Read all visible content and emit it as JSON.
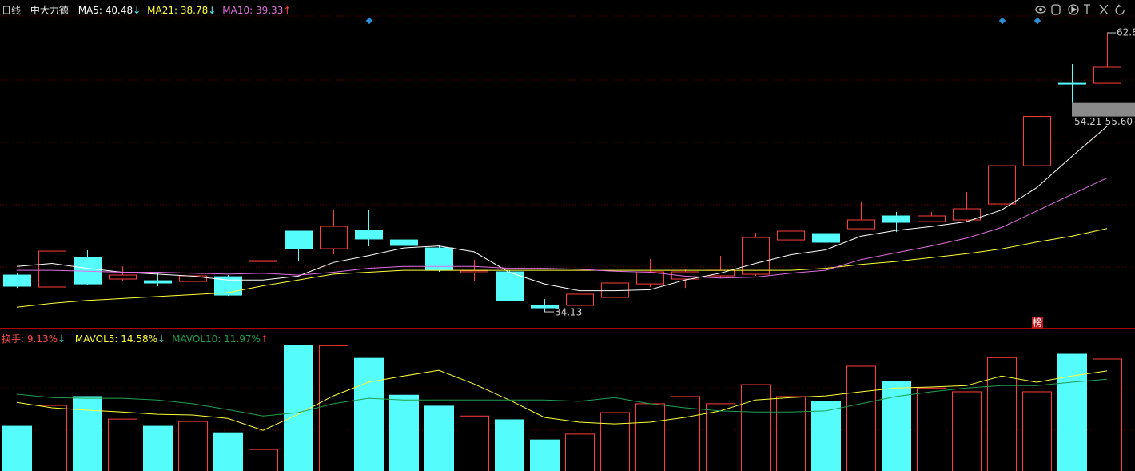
{
  "header": {
    "period": "日线",
    "stock": "中大力德"
  },
  "chart_data": [
    {
      "type": "candlestick",
      "open": [
        37.91,
        36.68,
        39.72,
        37.5,
        37.33,
        37.25,
        37.74,
        39.3,
        42.43,
        40.62,
        42.51,
        41.52,
        40.7,
        38.15,
        38.24,
        34.79,
        34.79,
        35.61,
        37.0,
        37.5,
        37.83,
        37.99,
        41.52,
        42.18,
        42.67,
        43.99,
        43.41,
        43.58,
        45.22,
        49.16,
        57.62,
        57.62
      ],
      "high": [
        38.07,
        40.37,
        40.46,
        38.81,
        38.24,
        38.65,
        37.91,
        39.39,
        42.43,
        44.64,
        44.64,
        43.33,
        40.95,
        39.47,
        38.4,
        35.44,
        35.94,
        37.09,
        39.55,
        38.57,
        39.88,
        42.26,
        43.41,
        43.08,
        45.47,
        44.4,
        44.4,
        46.45,
        49.16,
        54.21,
        59.6,
        62.8
      ],
      "low": [
        36.59,
        36.68,
        36.92,
        37.33,
        36.76,
        37.09,
        35.77,
        39.3,
        39.39,
        40.04,
        40.87,
        40.7,
        38.24,
        37.25,
        35.2,
        34.13,
        34.79,
        35.2,
        36.68,
        36.59,
        37.58,
        37.83,
        41.52,
        41.2,
        42.67,
        42.34,
        43.41,
        43.41,
        44.48,
        48.59,
        55.6,
        57.62
      ],
      "close": [
        36.76,
        40.37,
        37.0,
        37.91,
        37.09,
        37.83,
        35.85,
        39.39,
        40.62,
        42.92,
        41.61,
        40.95,
        38.4,
        38.32,
        35.28,
        34.54,
        35.94,
        37.09,
        38.24,
        38.24,
        38.4,
        41.77,
        42.43,
        41.28,
        43.58,
        43.33,
        43.99,
        44.73,
        49.16,
        54.21,
        57.6,
        59.27
      ],
      "up_color": "#ff3c3c",
      "down_color": "#54fcfc",
      "ylim": [
        32.49,
        66.17
      ],
      "series": [
        {
          "name": "MA5: 40.48",
          "arrow": "↓",
          "arrow_color": "#54fcfc",
          "color": "#ffffff",
          "values": [
            38.8,
            39.1,
            38.6,
            38.2,
            38.0,
            37.8,
            37.4,
            37.4,
            37.8,
            39.2,
            39.9,
            40.7,
            40.9,
            40.3,
            38.2,
            37.0,
            36.3,
            36.3,
            36.4,
            37.4,
            38.1,
            39.1,
            40.0,
            40.5,
            41.9,
            42.5,
            42.9,
            43.4,
            44.6,
            46.9,
            50.1,
            53.2
          ]
        },
        {
          "name": "MA21: 38.78",
          "arrow": "↓",
          "arrow_color": "#54fcfc",
          "color": "#ffff3c",
          "values": [
            34.6,
            35.0,
            35.3,
            35.5,
            35.7,
            35.9,
            36.1,
            36.8,
            37.4,
            38.0,
            38.2,
            38.4,
            38.4,
            38.4,
            38.4,
            38.4,
            38.4,
            38.4,
            38.4,
            38.4,
            38.4,
            38.4,
            38.4,
            38.6,
            39.0,
            39.3,
            39.7,
            40.1,
            40.6,
            41.3,
            41.9,
            42.7
          ]
        },
        {
          "name": "MA10: 39.33",
          "arrow": "↑",
          "arrow_color": "#ff3c3c",
          "color": "#e070e0",
          "values": [
            38.4,
            38.4,
            38.3,
            38.2,
            38.2,
            38.1,
            38.0,
            38.1,
            37.9,
            38.2,
            38.6,
            38.8,
            38.8,
            38.8,
            38.6,
            38.6,
            38.5,
            38.3,
            38.2,
            37.8,
            37.6,
            37.7,
            38.1,
            38.4,
            39.5,
            40.2,
            40.9,
            41.7,
            42.8,
            44.5,
            46.2,
            47.9
          ]
        }
      ],
      "gap_label": "54.21-55.60",
      "badge": "榜"
    },
    {
      "type": "bar",
      "name": "换手: 9.13%",
      "arrow": "↓",
      "arrow_color": "#54fcfc",
      "color": "#ff4b4b",
      "values": [
        13.1,
        19.2,
        21.8,
        15.2,
        13.1,
        14.5,
        11.2,
        6.3,
        36.7,
        36.7,
        33.0,
        22.2,
        19.0,
        16.1,
        15.0,
        9.1,
        10.8,
        17.1,
        19.7,
        21.8,
        19.7,
        25.3,
        21.8,
        20.4,
        30.7,
        26.2,
        24.3,
        23.2,
        33.2,
        23.2,
        34.2,
        32.8
      ],
      "ylim": [
        0,
        41.7
      ],
      "series": [
        {
          "name": "MAVOL5: 14.58%",
          "arrow": "↓",
          "arrow_color": "#54fcfc",
          "color": "#ffff3c",
          "values": [
            20.1,
            18.5,
            17.8,
            17.3,
            16.6,
            16.4,
            15.4,
            11.9,
            16.6,
            22.0,
            26.0,
            27.8,
            29.5,
            25.5,
            20.8,
            15.7,
            14.3,
            13.8,
            14.3,
            15.7,
            17.6,
            20.8,
            21.5,
            22.0,
            23.2,
            24.3,
            24.6,
            25.0,
            27.8,
            26.0,
            27.8,
            29.3
          ]
        },
        {
          "name": "MAVOL10: 11.97%",
          "arrow": "↑",
          "arrow_color": "#ff3c3c",
          "color": "#1ea050",
          "values": [
            22.5,
            21.5,
            21.3,
            21.3,
            20.8,
            19.7,
            18.0,
            16.1,
            17.1,
            19.7,
            21.3,
            20.8,
            20.8,
            20.8,
            20.8,
            20.8,
            20.4,
            21.5,
            19.7,
            18.5,
            17.6,
            17.3,
            17.3,
            17.6,
            19.7,
            21.8,
            23.2,
            24.3,
            25.0,
            25.0,
            26.0,
            26.9
          ]
        }
      ]
    }
  ]
}
